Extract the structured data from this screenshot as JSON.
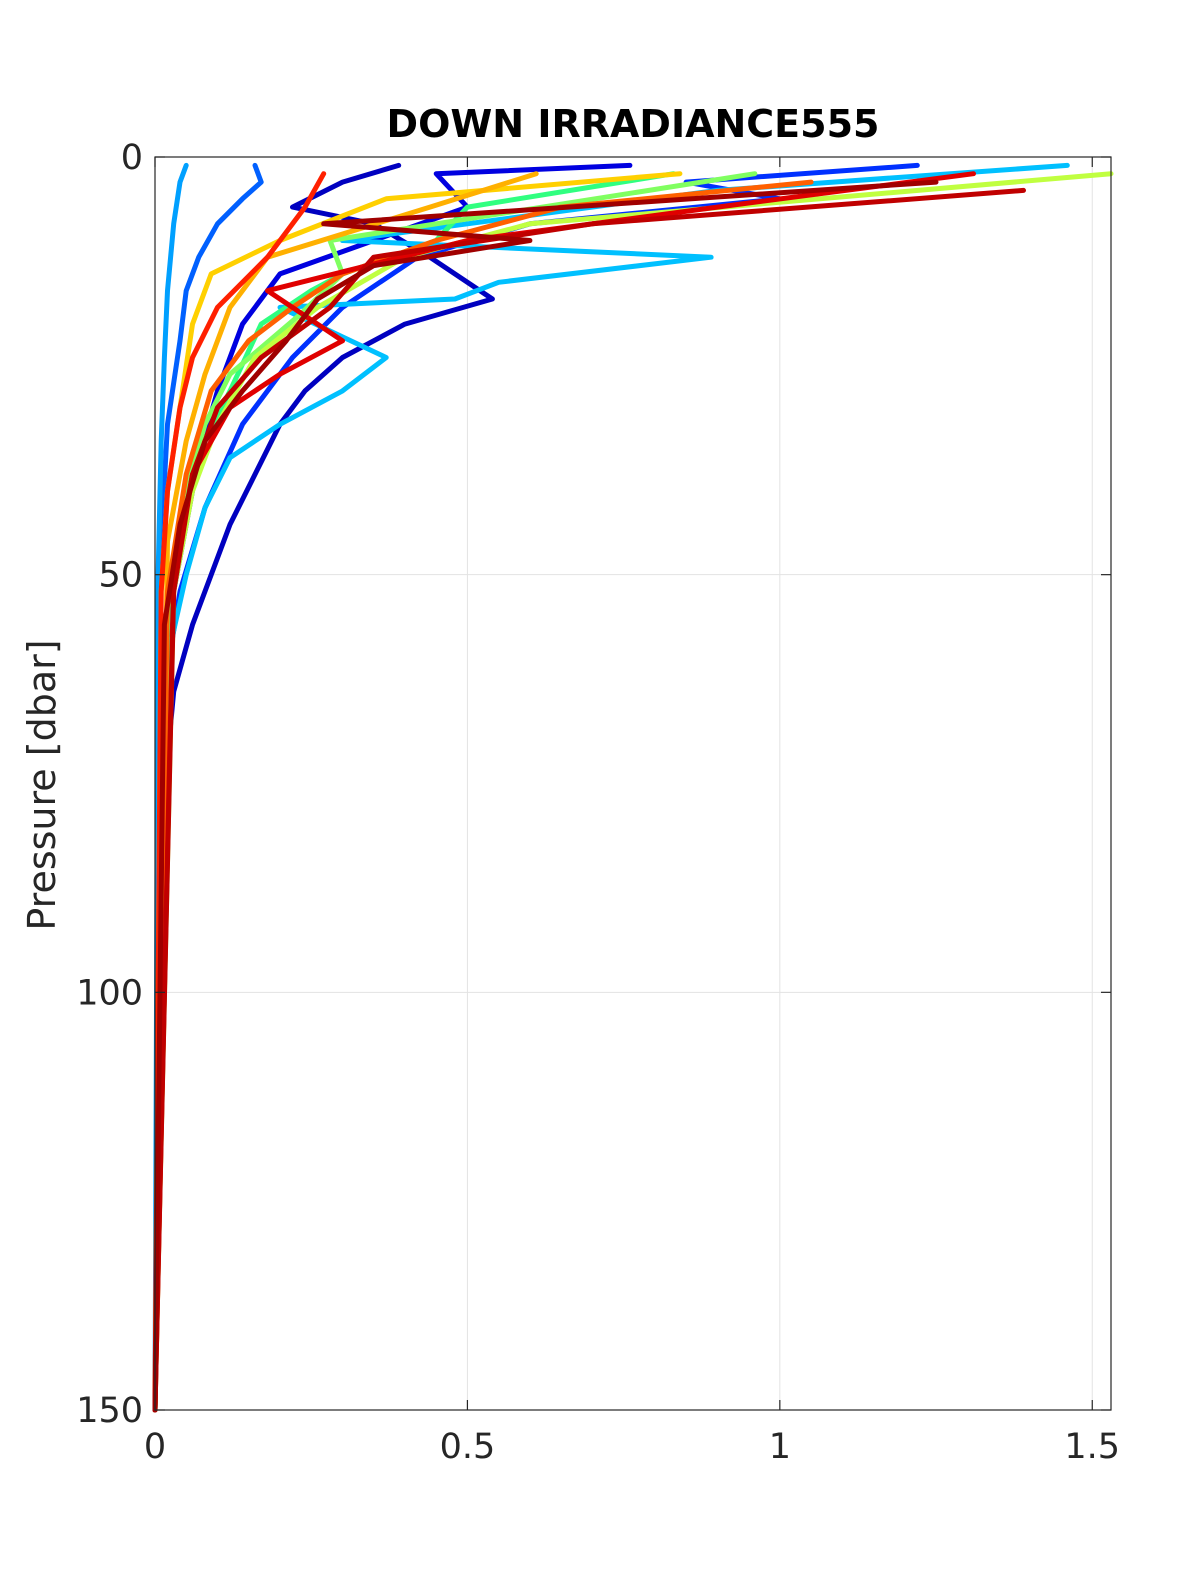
{
  "chart_data": {
    "type": "line",
    "title": "DOWN IRRADIANCE555",
    "xlabel": "",
    "ylabel": "Pressure [dbar]",
    "xlim": [
      0,
      1.53
    ],
    "ylim": [
      0,
      150
    ],
    "y_reversed": true,
    "grid": true,
    "legend": "none",
    "xticks": [
      {
        "value": 0,
        "label": "0"
      },
      {
        "value": 0.5,
        "label": "0.5"
      },
      {
        "value": 1,
        "label": "1"
      },
      {
        "value": 1.5,
        "label": "1.5"
      }
    ],
    "yticks": [
      {
        "value": 0,
        "label": "0"
      },
      {
        "value": 50,
        "label": "50"
      },
      {
        "value": 100,
        "label": "100"
      },
      {
        "value": 150,
        "label": "150"
      }
    ],
    "series": [
      {
        "color": "#0000c0",
        "x": [
          0.39,
          0.3,
          0.22,
          0.35,
          0.44,
          0.54,
          0.4,
          0.3,
          0.24,
          0.2,
          0.16,
          0.12,
          0.09,
          0.06,
          0.03,
          0.01,
          0.0
        ],
        "y": [
          1,
          3,
          6,
          8,
          12,
          17,
          20,
          24,
          28,
          32,
          38,
          44,
          50,
          56,
          64,
          80,
          150
        ]
      },
      {
        "color": "#0000e0",
        "x": [
          0.76,
          0.45,
          0.5,
          0.35,
          0.2,
          0.14,
          0.1,
          0.07,
          0.05,
          0.03,
          0.01,
          0.0
        ],
        "y": [
          1,
          2,
          6,
          10,
          14,
          20,
          28,
          36,
          44,
          52,
          64,
          150
        ]
      },
      {
        "color": "#0030ff",
        "x": [
          1.22,
          0.85,
          1.0,
          0.6,
          0.42,
          0.3,
          0.22,
          0.14,
          0.08,
          0.04,
          0.01,
          0.0
        ],
        "y": [
          1,
          3,
          5,
          8,
          12,
          18,
          24,
          32,
          42,
          52,
          66,
          150
        ]
      },
      {
        "color": "#0060ff",
        "x": [
          0.16,
          0.17,
          0.14,
          0.1,
          0.07,
          0.05,
          0.04,
          0.02,
          0.01,
          0.0
        ],
        "y": [
          1,
          3,
          5,
          8,
          12,
          16,
          22,
          32,
          46,
          150
        ]
      },
      {
        "color": "#00a0ff",
        "x": [
          0.05,
          0.04,
          0.03,
          0.02,
          0.015,
          0.01,
          0.005,
          0.0
        ],
        "y": [
          1,
          3,
          8,
          16,
          24,
          34,
          50,
          150
        ]
      },
      {
        "color": "#00c0ff",
        "x": [
          1.46,
          0.9,
          0.3,
          0.89,
          0.55,
          0.48,
          0.2,
          0.37,
          0.3,
          0.2,
          0.12,
          0.08,
          0.05,
          0.02,
          0.0
        ],
        "y": [
          1,
          4,
          10,
          12,
          15,
          17,
          18,
          24,
          28,
          32,
          36,
          42,
          50,
          60,
          150
        ]
      },
      {
        "color": "#30ff80",
        "x": [
          0.83,
          0.5,
          0.45,
          0.3,
          0.25,
          0.17,
          0.12,
          0.08,
          0.05,
          0.02,
          0.0
        ],
        "y": [
          2,
          6,
          10,
          14,
          16,
          20,
          28,
          34,
          42,
          56,
          150
        ]
      },
      {
        "color": "#80ff60",
        "x": [
          0.96,
          0.28,
          0.3,
          0.23,
          0.12,
          0.08,
          0.05,
          0.02,
          0.0
        ],
        "y": [
          2,
          10,
          14,
          19,
          26,
          32,
          40,
          54,
          150
        ]
      },
      {
        "color": "#c0ff40",
        "x": [
          1.53,
          0.6,
          0.4,
          0.26,
          0.16,
          0.1,
          0.06,
          0.03,
          0.0
        ],
        "y": [
          2,
          8,
          12,
          18,
          24,
          32,
          40,
          52,
          150
        ]
      },
      {
        "color": "#ffd000",
        "x": [
          0.84,
          0.37,
          0.2,
          0.09,
          0.06,
          0.04,
          0.02,
          0.01,
          0.0
        ],
        "y": [
          2,
          5,
          10,
          14,
          20,
          30,
          40,
          52,
          150
        ]
      },
      {
        "color": "#ffb000",
        "x": [
          0.61,
          0.44,
          0.18,
          0.12,
          0.08,
          0.05,
          0.02,
          0.0
        ],
        "y": [
          2,
          6,
          12,
          18,
          26,
          34,
          46,
          150
        ]
      },
      {
        "color": "#ff6000",
        "x": [
          1.05,
          0.65,
          0.45,
          0.3,
          0.22,
          0.15,
          0.09,
          0.05,
          0.02,
          0.0
        ],
        "y": [
          3,
          6,
          10,
          14,
          18,
          22,
          28,
          38,
          52,
          150
        ]
      },
      {
        "color": "#ff2000",
        "x": [
          0.27,
          0.24,
          0.18,
          0.1,
          0.06,
          0.04,
          0.02,
          0.01,
          0.0
        ],
        "y": [
          2,
          6,
          12,
          18,
          24,
          30,
          40,
          52,
          150
        ]
      },
      {
        "color": "#e00000",
        "x": [
          1.31,
          0.9,
          0.5,
          0.18,
          0.3,
          0.2,
          0.12,
          0.06,
          0.03,
          0.0
        ],
        "y": [
          2,
          6,
          10,
          16,
          22,
          26,
          30,
          38,
          50,
          150
        ]
      },
      {
        "color": "#c00000",
        "x": [
          1.39,
          0.7,
          0.35,
          0.28,
          0.17,
          0.1,
          0.06,
          0.03,
          0.0
        ],
        "y": [
          4,
          8,
          12,
          18,
          24,
          30,
          38,
          52,
          150
        ]
      },
      {
        "color": "#a00000",
        "x": [
          1.25,
          0.27,
          0.6,
          0.35,
          0.26,
          0.21,
          0.14,
          0.08,
          0.04,
          0.015,
          0.0
        ],
        "y": [
          3,
          8,
          10,
          13,
          17,
          22,
          28,
          34,
          44,
          56,
          150
        ]
      }
    ]
  }
}
